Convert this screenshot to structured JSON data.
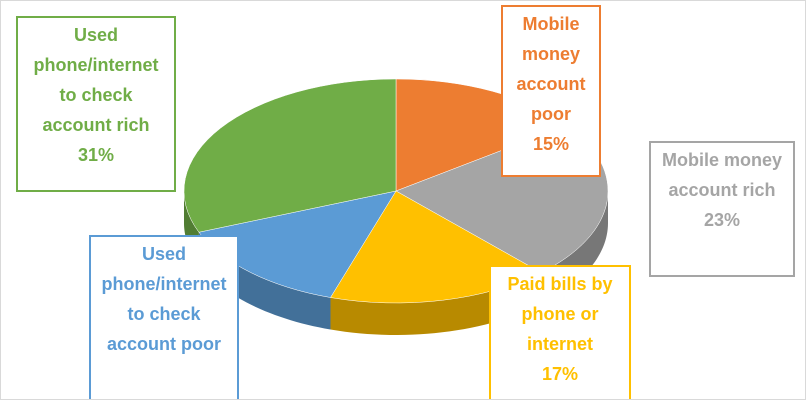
{
  "chart_data": {
    "type": "pie",
    "categories": [
      "Mobile money account poor",
      "Mobile money account rich",
      "Paid bills by phone or internet",
      "Used phone/internet to check account poor",
      "Used phone/internet to check account rich"
    ],
    "values": [
      15,
      23,
      17,
      14,
      31
    ],
    "value_labels": [
      "15%",
      "23%",
      "17%",
      null,
      "31%"
    ],
    "colors": [
      "#ed7d31",
      "#a5a5a5",
      "#ffc000",
      "#5b9bd5",
      "#70ad47"
    ],
    "three_d": true
  }
}
